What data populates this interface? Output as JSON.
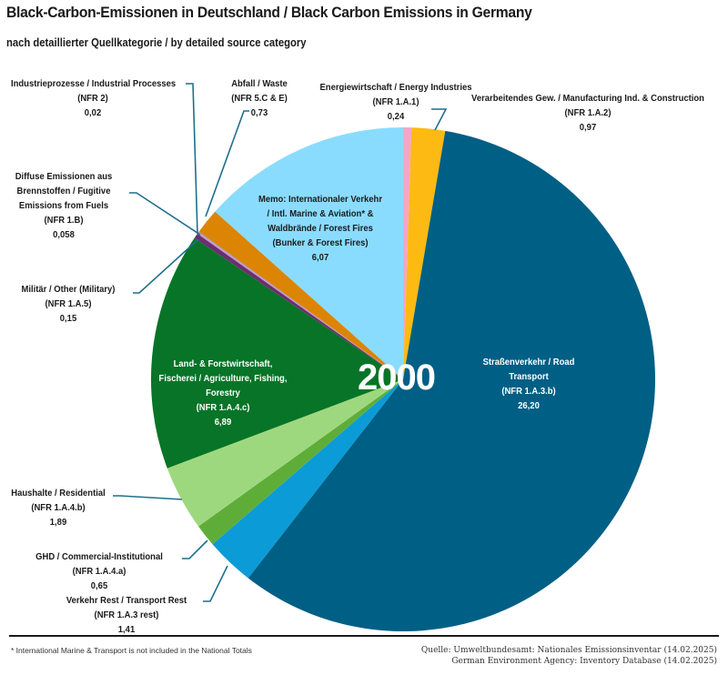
{
  "header": {
    "title": "Black-Carbon-Emissionen in Deutschland / Black Carbon Emissions in Germany",
    "subtitle": "nach detaillierter Quellkategorie / by detailed source category"
  },
  "year_label": "2000",
  "footer": {
    "footnote": "* International Marine & Transport is not included in the National Totals",
    "source_line1": "Quelle: Umweltbundesamt: Nationales Emissionsinventar (14.02.2025)",
    "source_line2": "German Environment Agency: Inventory Database (14.02.2025)"
  },
  "chart_data": {
    "type": "pie",
    "title": "Black-Carbon-Emissionen in Deutschland / Black Carbon Emissions in Germany",
    "subtitle": "nach detaillierter Quellkategorie / by detailed source category",
    "annotation": "2000",
    "start_angle": "12 o'clock, clockwise",
    "slices": [
      {
        "name": "Energiewirtschaft / Energy Industries",
        "code": "(NFR 1.A.1)",
        "value": 0.24,
        "value_label": "0,24",
        "color": "#f4a6c6"
      },
      {
        "name": "Verarbeitendes Gew. / Manufacturing Ind. & Construction",
        "code": "(NFR 1.A.2)",
        "value": 0.97,
        "value_label": "0,97",
        "color": "#fdba12"
      },
      {
        "name": "Straßenverkehr / Road Transport",
        "code": "(NFR 1.A.3.b)",
        "value": 26.2,
        "value_label": "26,20",
        "color": "#005f85"
      },
      {
        "name": "Verkehr Rest / Transport Rest",
        "code": "(NFR 1.A.3 rest)",
        "value": 1.41,
        "value_label": "1,41",
        "color": "#0b9bd7"
      },
      {
        "name": "GHD / Commercial-Institutional",
        "code": "(NFR 1.A.4.a)",
        "value": 0.65,
        "value_label": "0,65",
        "color": "#5fad39"
      },
      {
        "name": "Haushalte / Residential",
        "code": "(NFR 1.A.4.b)",
        "value": 1.89,
        "value_label": "1,89",
        "color": "#9ed87e"
      },
      {
        "name": "Land- & Forstwirtschaft, Fischerei / Agriculture, Fishing, Forestry",
        "code": "(NFR 1.A.4.c)",
        "value": 6.89,
        "value_label": "6,89",
        "color": "#077427"
      },
      {
        "name": "Militär / Other (Military)",
        "code": "(NFR 1.A.5)",
        "value": 0.15,
        "value_label": "0,15",
        "color": "#6b2e6e"
      },
      {
        "name": "Diffuse Emissionen aus Brennstoffen / Fugitive Emissions from Fuels",
        "code": "(NFR 1.B)",
        "value": 0.058,
        "value_label": "0,058",
        "color": "#c59ad0"
      },
      {
        "name": "Industrieprozesse / Industrial Processes",
        "code": "(NFR 2)",
        "value": 0.02,
        "value_label": "0,02",
        "color": "#8b8b8b"
      },
      {
        "name": "Abfall / Waste",
        "code": "(NFR 5.C & E)",
        "value": 0.73,
        "value_label": "0,73",
        "color": "#dc8404"
      },
      {
        "name": "Memo: Internationaler Verkehr / Intl. Marine & Aviation* & Waldbrände / Forest Fires",
        "code": "(Bunker & Forest Fires)",
        "value": 6.07,
        "value_label": "6,07",
        "color": "#8adcff"
      }
    ]
  },
  "labels": {
    "energy": {
      "l1": "Energiewirtschaft / Energy Industries",
      "l2": "(NFR 1.A.1)",
      "l3": "0,24"
    },
    "manufacturing": {
      "l1": "Verarbeitendes Gew. / Manufacturing Ind. & Construction",
      "l2": "(NFR 1.A.2)",
      "l3": "0,97"
    },
    "road": {
      "l1": "Straßenverkehr / Road",
      "l2": "Transport",
      "l3": "(NFR 1.A.3.b)",
      "l4": "26,20"
    },
    "transport_rest": {
      "l1": "Verkehr Rest / Transport Rest",
      "l2": "(NFR 1.A.3 rest)",
      "l3": "1,41"
    },
    "commercial": {
      "l1": "GHD / Commercial-Institutional",
      "l2": "(NFR 1.A.4.a)",
      "l3": "0,65"
    },
    "residential": {
      "l1": "Haushalte / Residential",
      "l2": "(NFR 1.A.4.b)",
      "l3": "1,89"
    },
    "agriculture": {
      "l1": "Land- & Forstwirtschaft,",
      "l2": "Fischerei / Agriculture, Fishing,",
      "l3": "Forestry",
      "l4": "(NFR 1.A.4.c)",
      "l5": "6,89"
    },
    "military": {
      "l1": "Militär / Other (Military)",
      "l2": "(NFR 1.A.5)",
      "l3": "0,15"
    },
    "fugitive": {
      "l1": "Diffuse Emissionen aus",
      "l2": "Brennstoffen / Fugitive",
      "l3": "Emissions from Fuels",
      "l4": "(NFR 1.B)",
      "l5": "0,058"
    },
    "industrial": {
      "l1": "Industrieprozesse / Industrial Processes",
      "l2": "(NFR 2)",
      "l3": "0,02"
    },
    "waste": {
      "l1": "Abfall / Waste",
      "l2": "(NFR 5.C & E)",
      "l3": "0,73"
    },
    "memo": {
      "l1": "Memo: Internationaler Verkehr",
      "l2": "/ Intl. Marine & Aviation* &",
      "l3": "Waldbrände / Forest Fires",
      "l4": "(Bunker & Forest Fires)",
      "l5": "6,07"
    }
  },
  "leader_color": "#1f6f8b"
}
